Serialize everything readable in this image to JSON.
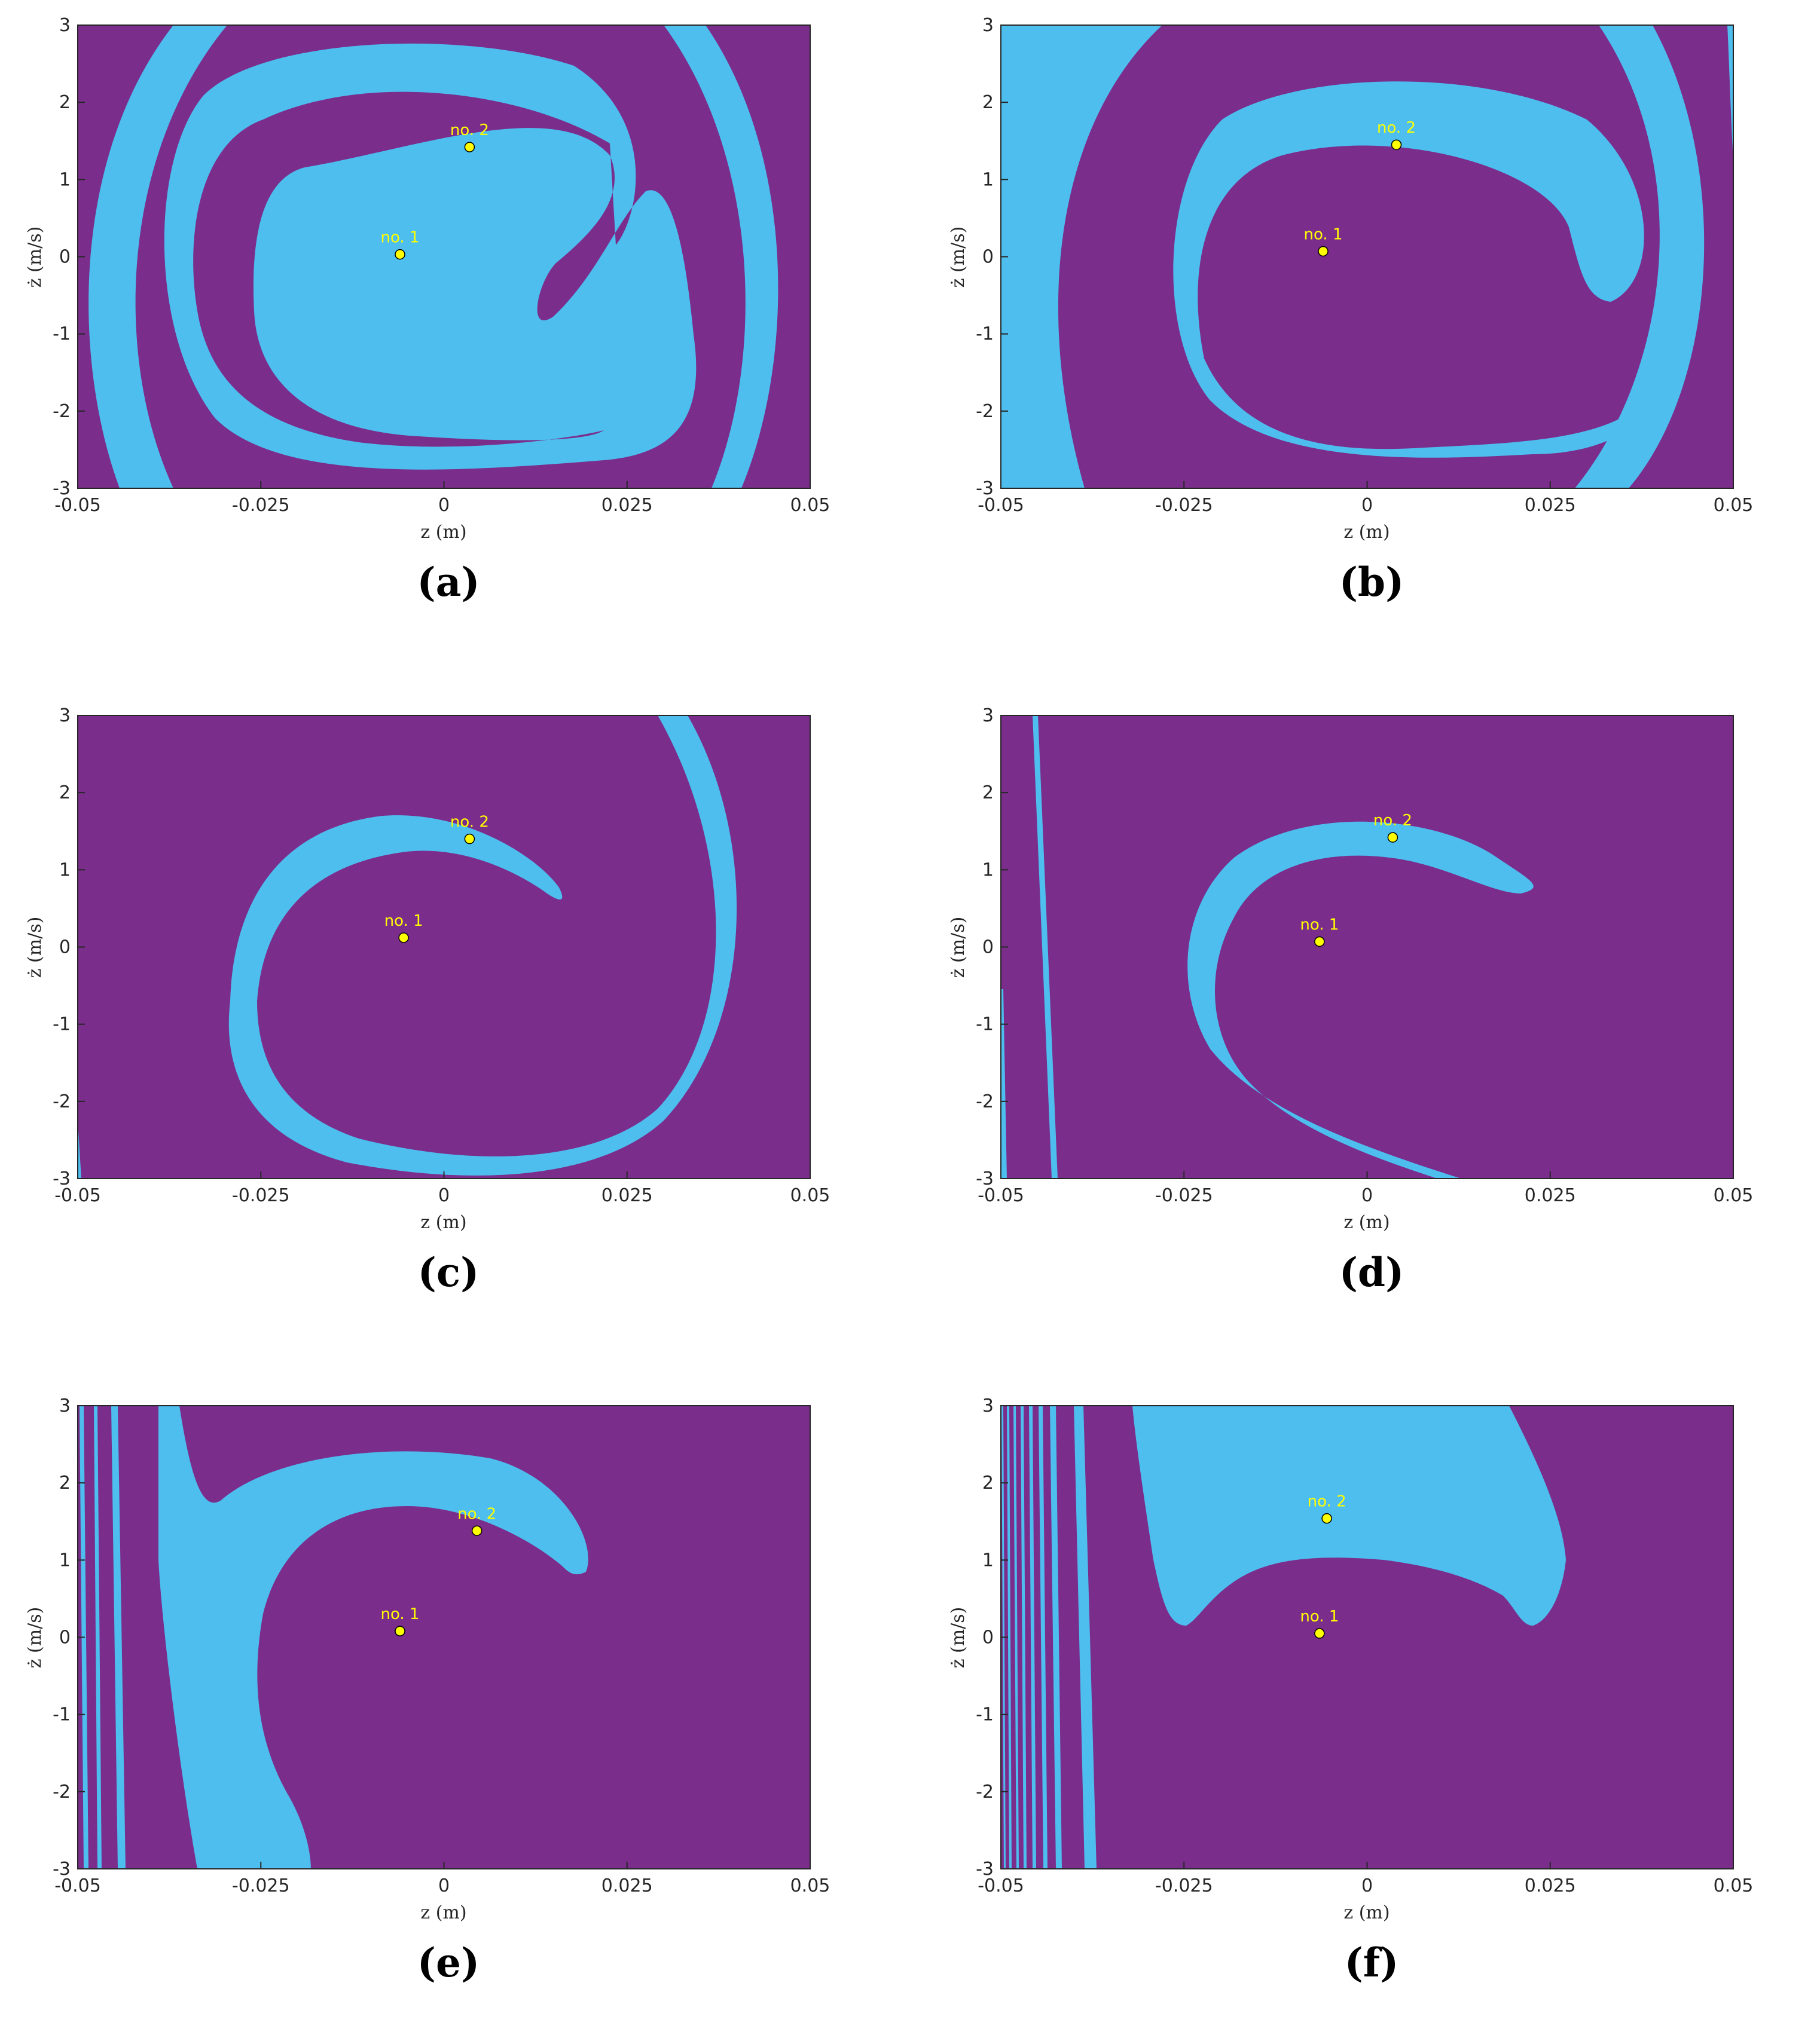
{
  "colors": {
    "background_region": "#7B2D8B",
    "basin_region": "#4DBEEE",
    "point_fill": "#FFFF00"
  },
  "chart_data": [
    {
      "type": "heatmap",
      "panel": "a",
      "caption": "(a)",
      "xlabel": "z (m)",
      "ylabel": "ż (m/s)",
      "xlim": [
        -0.05,
        0.05
      ],
      "ylim": [
        -3,
        3
      ],
      "xticks": [
        "-0.05",
        "-0.025",
        "0",
        "0.025",
        "0.05"
      ],
      "yticks": [
        "-3",
        "-2",
        "-1",
        "0",
        "1",
        "2",
        "3"
      ],
      "points": [
        {
          "label": "no. 1",
          "x": -0.006,
          "y": 0.03
        },
        {
          "label": "no. 2",
          "x": 0.0035,
          "y": 1.42
        }
      ]
    },
    {
      "type": "heatmap",
      "panel": "b",
      "caption": "(b)",
      "xlabel": "z (m)",
      "ylabel": "ż (m/s)",
      "xlim": [
        -0.05,
        0.05
      ],
      "ylim": [
        -3,
        3
      ],
      "xticks": [
        "-0.05",
        "-0.025",
        "0",
        "0.025",
        "0.05"
      ],
      "yticks": [
        "-3",
        "-2",
        "-1",
        "0",
        "1",
        "2",
        "3"
      ],
      "points": [
        {
          "label": "no. 1",
          "x": -0.006,
          "y": 0.07
        },
        {
          "label": "no. 2",
          "x": 0.004,
          "y": 1.45
        }
      ]
    },
    {
      "type": "heatmap",
      "panel": "c",
      "caption": "(c)",
      "xlabel": "z (m)",
      "ylabel": "ż (m/s)",
      "xlim": [
        -0.05,
        0.05
      ],
      "ylim": [
        -3,
        3
      ],
      "xticks": [
        "-0.05",
        "-0.025",
        "0",
        "0.025",
        "0.05"
      ],
      "yticks": [
        "-3",
        "-2",
        "-1",
        "0",
        "1",
        "2",
        "3"
      ],
      "points": [
        {
          "label": "no. 1",
          "x": -0.0055,
          "y": 0.12
        },
        {
          "label": "no. 2",
          "x": 0.0035,
          "y": 1.4
        }
      ]
    },
    {
      "type": "heatmap",
      "panel": "d",
      "caption": "(d)",
      "xlabel": "z (m)",
      "ylabel": "ż (m/s)",
      "xlim": [
        -0.05,
        0.05
      ],
      "ylim": [
        -3,
        3
      ],
      "xticks": [
        "-0.05",
        "-0.025",
        "0",
        "0.025",
        "0.05"
      ],
      "yticks": [
        "-3",
        "-2",
        "-1",
        "0",
        "1",
        "2",
        "3"
      ],
      "points": [
        {
          "label": "no. 1",
          "x": -0.0065,
          "y": 0.07
        },
        {
          "label": "no. 2",
          "x": 0.0035,
          "y": 1.42
        }
      ]
    },
    {
      "type": "heatmap",
      "panel": "e",
      "caption": "(e)",
      "xlabel": "z (m)",
      "ylabel": "ż (m/s)",
      "xlim": [
        -0.05,
        0.05
      ],
      "ylim": [
        -3,
        3
      ],
      "xticks": [
        "-0.05",
        "-0.025",
        "0",
        "0.025",
        "0.05"
      ],
      "yticks": [
        "-3",
        "-2",
        "-1",
        "0",
        "1",
        "2",
        "3"
      ],
      "points": [
        {
          "label": "no. 1",
          "x": -0.006,
          "y": 0.08
        },
        {
          "label": "no. 2",
          "x": 0.0045,
          "y": 1.38
        }
      ]
    },
    {
      "type": "heatmap",
      "panel": "f",
      "caption": "(f)",
      "xlabel": "z (m)",
      "ylabel": "ż (m/s)",
      "xlim": [
        -0.05,
        0.05
      ],
      "ylim": [
        -3,
        3
      ],
      "xticks": [
        "-0.05",
        "-0.025",
        "0",
        "0.025",
        "0.05"
      ],
      "yticks": [
        "-3",
        "-2",
        "-1",
        "0",
        "1",
        "2",
        "3"
      ],
      "points": [
        {
          "label": "no. 1",
          "x": -0.0065,
          "y": 0.05
        },
        {
          "label": "no. 2",
          "x": -0.0055,
          "y": 1.54
        }
      ]
    }
  ]
}
